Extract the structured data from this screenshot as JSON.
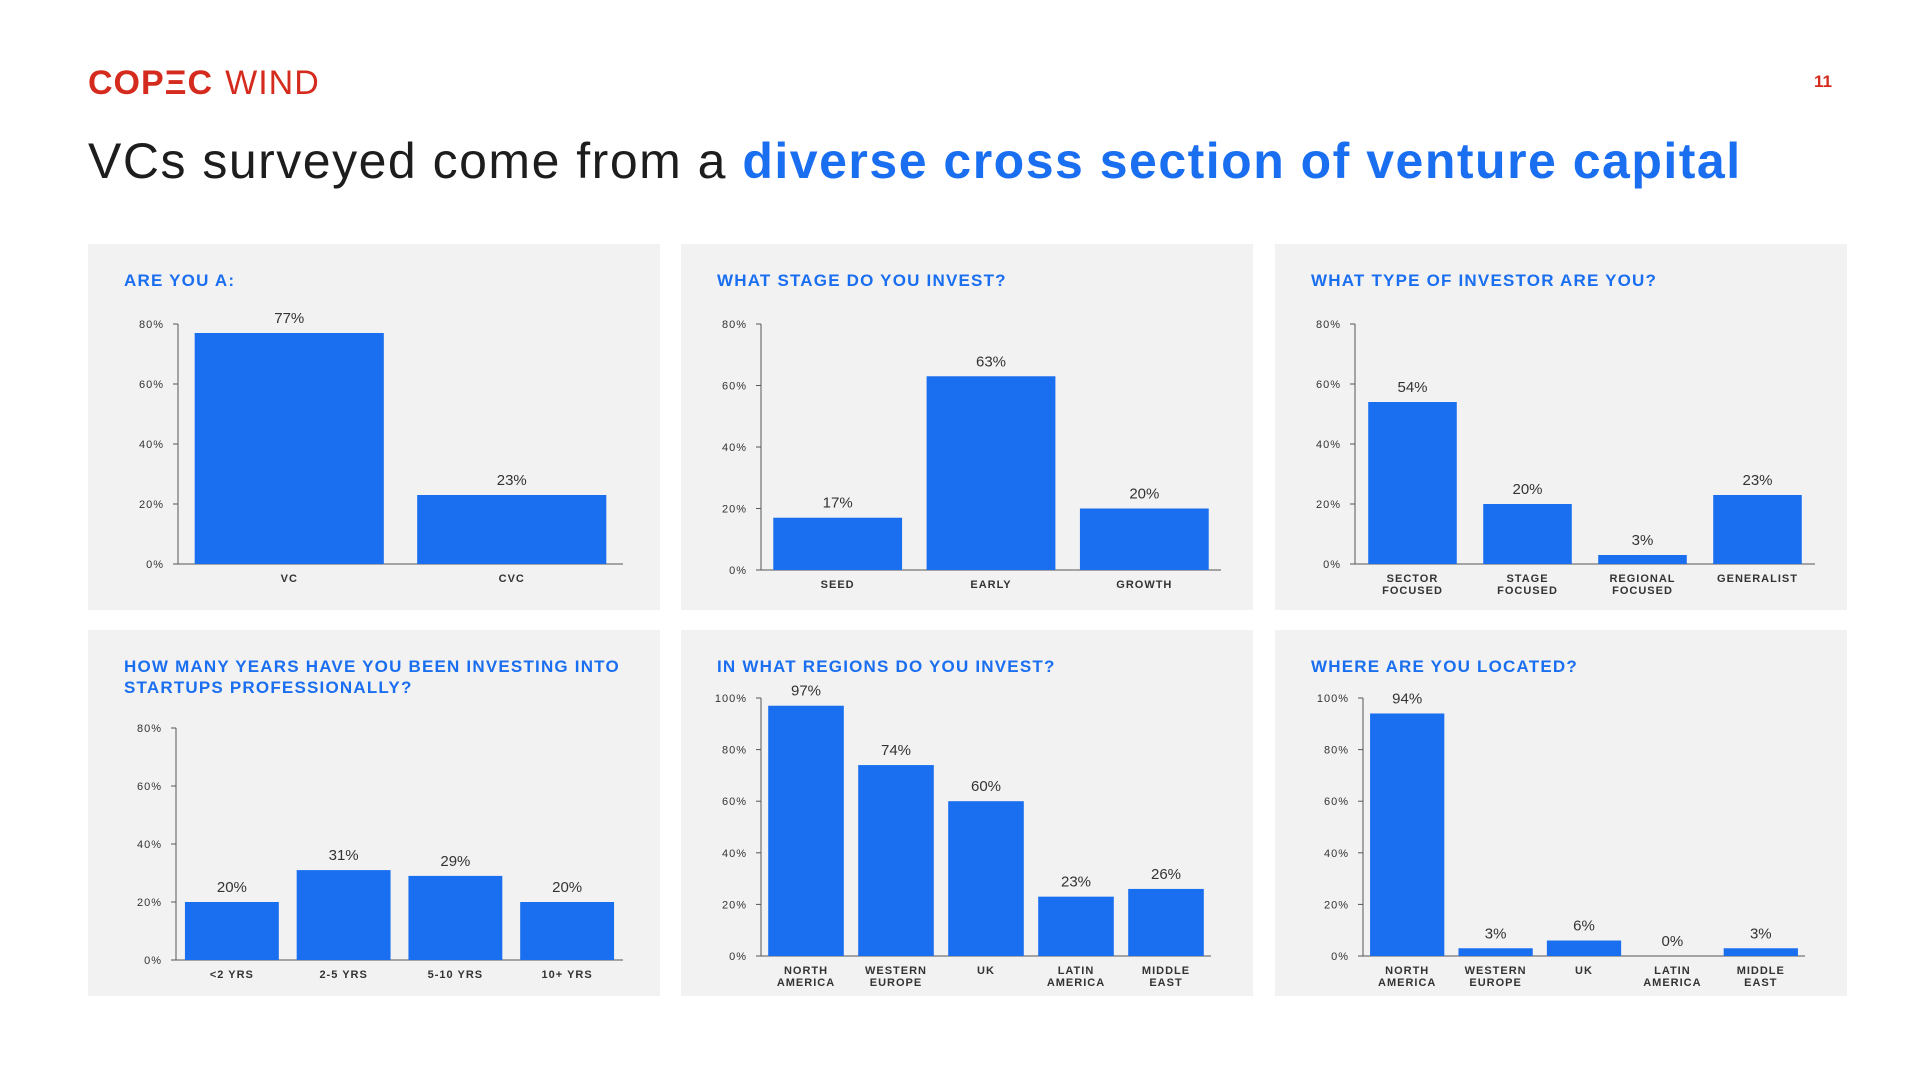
{
  "brand": {
    "logo_primary": "COPΞC",
    "logo_secondary": "WIND",
    "page_number": "11"
  },
  "heading": {
    "plain": "VCs surveyed come from a ",
    "accent": "diverse cross section of venture capital"
  },
  "colors": {
    "bar": "#1a6ef0",
    "brand": "#d52b1e",
    "panel": "#f2f2f2"
  },
  "chart_data": [
    {
      "type": "bar",
      "title": "ARE YOU A:",
      "categories": [
        [
          "VC"
        ],
        [
          "CVC"
        ]
      ],
      "values": [
        77,
        23
      ],
      "data_labels": [
        "77%",
        "23%"
      ],
      "yticks": [
        "0%",
        "20%",
        "40%",
        "60%",
        "80%"
      ],
      "ylim": [
        0,
        80
      ]
    },
    {
      "type": "bar",
      "title": "WHAT STAGE DO YOU INVEST?",
      "categories": [
        [
          "SEED"
        ],
        [
          "EARLY"
        ],
        [
          "GROWTH"
        ]
      ],
      "values": [
        17,
        63,
        20
      ],
      "data_labels": [
        "17%",
        "63%",
        "20%"
      ],
      "yticks": [
        "0%",
        "20%",
        "40%",
        "60%",
        "80%"
      ],
      "ylim": [
        0,
        80
      ]
    },
    {
      "type": "bar",
      "title": "WHAT TYPE OF INVESTOR ARE YOU?",
      "categories": [
        [
          "SECTOR",
          "FOCUSED"
        ],
        [
          "STAGE",
          "FOCUSED"
        ],
        [
          "REGIONAL",
          "FOCUSED"
        ],
        [
          "GENERALIST"
        ]
      ],
      "values": [
        54,
        20,
        3,
        23
      ],
      "data_labels": [
        "54%",
        "20%",
        "3%",
        "23%"
      ],
      "yticks": [
        "0%",
        "20%",
        "40%",
        "60%",
        "80%"
      ],
      "ylim": [
        0,
        80
      ]
    },
    {
      "type": "bar",
      "title": "HOW MANY YEARS HAVE YOU BEEN INVESTING INTO STARTUPS PROFESSIONALLY?",
      "categories": [
        [
          "<2 YRS"
        ],
        [
          "2-5 YRS"
        ],
        [
          "5-10 YRS"
        ],
        [
          "10+ YRS"
        ]
      ],
      "values": [
        20,
        31,
        29,
        20
      ],
      "data_labels": [
        "20%",
        "31%",
        "29%",
        "20%"
      ],
      "yticks": [
        "0%",
        "20%",
        "40%",
        "60%",
        "80%"
      ],
      "ylim": [
        0,
        80
      ]
    },
    {
      "type": "bar",
      "title": "IN WHAT REGIONS DO YOU INVEST?",
      "categories": [
        [
          "NORTH",
          "AMERICA"
        ],
        [
          "WESTERN",
          "EUROPE"
        ],
        [
          "UK"
        ],
        [
          "LATIN",
          "AMERICA"
        ],
        [
          "MIDDLE",
          "EAST"
        ]
      ],
      "values": [
        97,
        74,
        60,
        23,
        26
      ],
      "data_labels": [
        "97%",
        "74%",
        "60%",
        "23%",
        "26%"
      ],
      "yticks": [
        "0%",
        "20%",
        "40%",
        "60%",
        "80%",
        "100%"
      ],
      "ylim": [
        0,
        100
      ]
    },
    {
      "type": "bar",
      "title": "WHERE ARE YOU LOCATED?",
      "categories": [
        [
          "NORTH",
          "AMERICA"
        ],
        [
          "WESTERN",
          "EUROPE"
        ],
        [
          "UK"
        ],
        [
          "LATIN",
          "AMERICA"
        ],
        [
          "MIDDLE",
          "EAST"
        ]
      ],
      "values": [
        94,
        3,
        6,
        0,
        3
      ],
      "data_labels": [
        "94%",
        "3%",
        "6%",
        "0%",
        "3%"
      ],
      "yticks": [
        "0%",
        "20%",
        "40%",
        "60%",
        "80%",
        "100%"
      ],
      "ylim": [
        0,
        100
      ]
    }
  ]
}
